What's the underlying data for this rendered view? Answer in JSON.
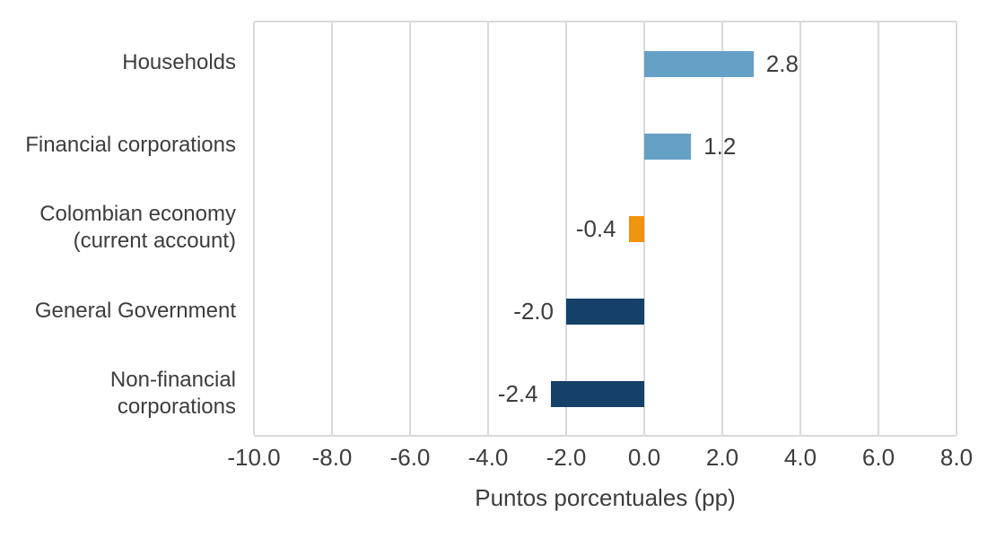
{
  "chart_data": {
    "type": "bar",
    "orientation": "horizontal",
    "title": "",
    "xlabel": "Puntos porcentuales (pp)",
    "ylabel": "",
    "categories": [
      "Households",
      "Financial corporations",
      "Colombian economy\n(current account)",
      "General Government",
      "Non-financial\ncorporations"
    ],
    "values": [
      2.8,
      1.2,
      -0.4,
      -2.0,
      -2.4
    ],
    "data_labels": [
      "2.8",
      "1.2",
      "-0.4",
      "-2.0",
      "-2.4"
    ],
    "bar_colors": [
      "#66A0C7",
      "#66A0C7",
      "#F0930D",
      "#154169",
      "#154169"
    ],
    "xlim": [
      -10.0,
      8.0
    ],
    "xticks": [
      -10.0,
      -8.0,
      -6.0,
      -4.0,
      -2.0,
      0.0,
      2.0,
      4.0,
      6.0,
      8.0
    ],
    "xtick_labels": [
      "-10.0",
      "-8.0",
      "-6.0",
      "-4.0",
      "-2.0",
      "0.0",
      "2.0",
      "4.0",
      "6.0",
      "8.0"
    ],
    "grid": "vertical",
    "legend": "none",
    "colors": {
      "positive_blue": "#66A0C7",
      "highlight_orange": "#F0930D",
      "negative_navy": "#154169",
      "gridline": "#DADADA",
      "text": "#3D3D3D"
    }
  }
}
